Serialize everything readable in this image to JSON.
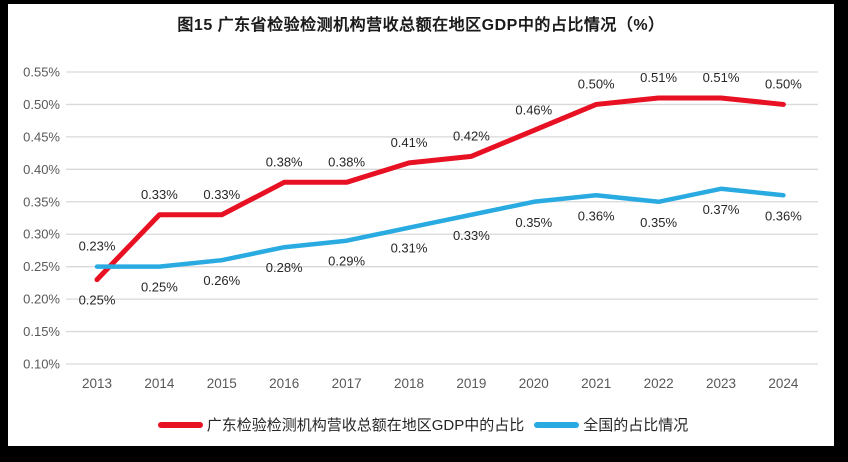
{
  "title": "图15  广东省检验检测机构营收总额在地区GDP中的占比情况（%）",
  "colors": {
    "frame_background": "#000000",
    "panel_background": "#ffffff",
    "gridline": "#d9d9d9",
    "axis_text": "#595959",
    "data_label_text": "#262626",
    "series_guangdong": "#e81123",
    "series_national": "#29abe2"
  },
  "chart_data": {
    "type": "line",
    "x": [
      "2013",
      "2014",
      "2015",
      "2016",
      "2017",
      "2018",
      "2019",
      "2020",
      "2021",
      "2022",
      "2023",
      "2024"
    ],
    "series": [
      {
        "name": "广东检验检测机构营收总额在地区GDP中的占比",
        "color": "#e81123",
        "values": [
          0.23,
          0.33,
          0.33,
          0.38,
          0.38,
          0.41,
          0.42,
          0.46,
          0.5,
          0.51,
          0.51,
          0.5
        ],
        "labels": [
          "0.23%",
          "0.33%",
          "0.33%",
          "0.38%",
          "0.38%",
          "0.41%",
          "0.42%",
          "0.46%",
          "0.50%",
          "0.51%",
          "0.51%",
          "0.50%"
        ]
      },
      {
        "name": "全国的占比情况",
        "color": "#29abe2",
        "values": [
          0.25,
          0.25,
          0.26,
          0.28,
          0.29,
          0.31,
          0.33,
          0.35,
          0.36,
          0.35,
          0.37,
          0.36
        ],
        "labels": [
          "0.25%",
          "0.25%",
          "0.26%",
          "0.28%",
          "0.29%",
          "0.31%",
          "0.33%",
          "0.35%",
          "0.36%",
          "0.35%",
          "0.37%",
          "0.36%"
        ]
      }
    ],
    "y_ticks": [
      "0.55%",
      "0.50%",
      "0.45%",
      "0.40%",
      "0.35%",
      "0.30%",
      "0.25%",
      "0.20%",
      "0.15%",
      "0.10%"
    ],
    "ylim": [
      0.1,
      0.55
    ],
    "xlabel": "",
    "ylabel": "",
    "grid": true,
    "legend_position": "bottom"
  }
}
